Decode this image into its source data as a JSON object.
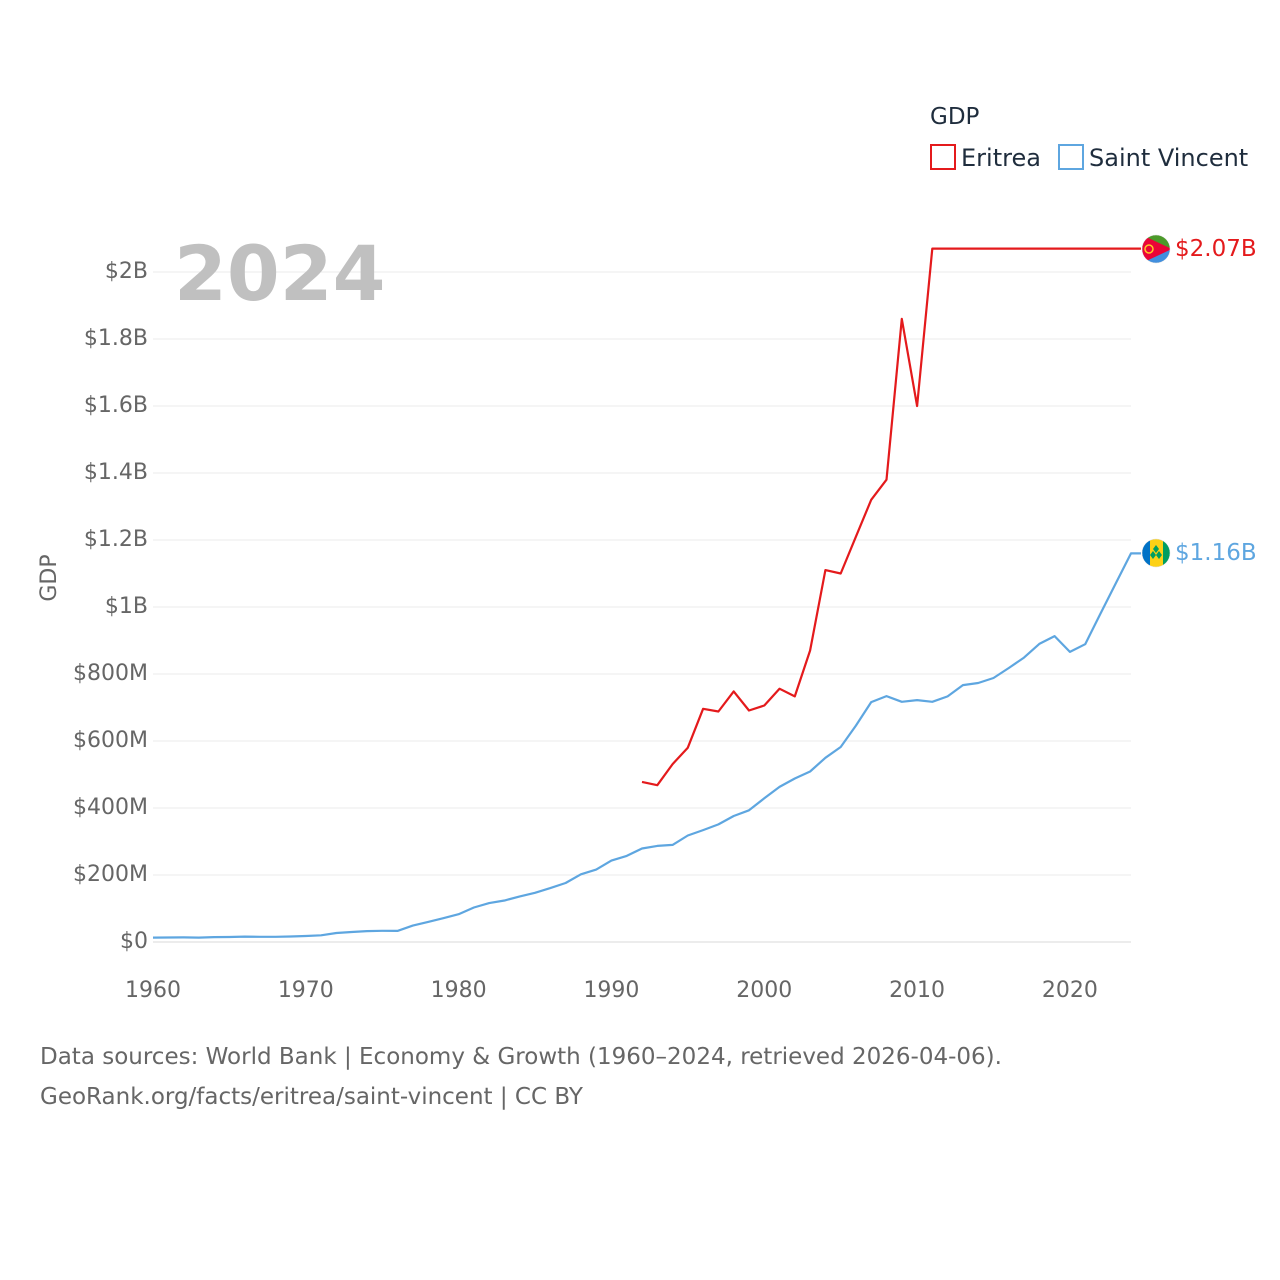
{
  "chart_data": {
    "type": "line",
    "ylabel": "GDP",
    "year_label": "2024",
    "legend": {
      "title": "GDP",
      "placement": "top-right"
    },
    "x_ticks": [
      1960,
      1970,
      1980,
      1990,
      2000,
      2010,
      2020
    ],
    "y_ticks": [
      {
        "value": 0,
        "label": "$0"
      },
      {
        "value": 200000000,
        "label": "$200M"
      },
      {
        "value": 400000000,
        "label": "$400M"
      },
      {
        "value": 600000000,
        "label": "$600M"
      },
      {
        "value": 800000000,
        "label": "$800M"
      },
      {
        "value": 1000000000,
        "label": "$1B"
      },
      {
        "value": 1200000000,
        "label": "$1.2B"
      },
      {
        "value": 1400000000,
        "label": "$1.4B"
      },
      {
        "value": 1600000000,
        "label": "$1.6B"
      },
      {
        "value": 1800000000,
        "label": "$1.8B"
      },
      {
        "value": 2000000000,
        "label": "$2B"
      }
    ],
    "xlim": [
      1960,
      2024
    ],
    "ylim": [
      0,
      2000000000
    ],
    "series": [
      {
        "name": "Eritrea",
        "color": "#e41a1c",
        "end_label": "$2.07B",
        "x": [
          1992,
          1993,
          1994,
          1995,
          1996,
          1997,
          1998,
          1999,
          2000,
          2001,
          2002,
          2003,
          2004,
          2005,
          2006,
          2007,
          2008,
          2009,
          2010,
          2011,
          2012,
          2013,
          2014,
          2015,
          2016,
          2017,
          2018,
          2019,
          2020,
          2021,
          2022,
          2023,
          2024
        ],
        "y": [
          478000000,
          468000000,
          531000000,
          580000000,
          696000000,
          688000000,
          748000000,
          691000000,
          706000000,
          756000000,
          733000000,
          870000000,
          1110000000,
          1100000000,
          1210000000,
          1320000000,
          1380000000,
          1860000000,
          1600000000,
          2070000000,
          2070000000,
          2070000000,
          2070000000,
          2070000000,
          2070000000,
          2070000000,
          2070000000,
          2070000000,
          2070000000,
          2070000000,
          2070000000,
          2070000000,
          2070000000
        ]
      },
      {
        "name": "Saint Vincent",
        "color": "#5ea6e0",
        "end_label": "$1.16B",
        "x": [
          1960,
          1961,
          1962,
          1963,
          1964,
          1965,
          1966,
          1967,
          1968,
          1969,
          1970,
          1971,
          1972,
          1973,
          1974,
          1975,
          1976,
          1977,
          1978,
          1979,
          1980,
          1981,
          1982,
          1983,
          1984,
          1985,
          1986,
          1987,
          1988,
          1989,
          1990,
          1991,
          1992,
          1993,
          1994,
          1995,
          1996,
          1997,
          1998,
          1999,
          2000,
          2001,
          2002,
          2003,
          2004,
          2005,
          2006,
          2007,
          2008,
          2009,
          2010,
          2011,
          2012,
          2013,
          2014,
          2015,
          2016,
          2017,
          2018,
          2019,
          2020,
          2021,
          2022,
          2023,
          2024
        ],
        "y": [
          13000000,
          13500000,
          13800000,
          13200000,
          14500000,
          15000000,
          16000000,
          15500000,
          15500000,
          16500000,
          18000000,
          20000000,
          27000000,
          30000000,
          32500000,
          33500000,
          33000000,
          49000000,
          60000000,
          71000000,
          83000000,
          103000000,
          116000000,
          124000000,
          136000000,
          147000000,
          161000000,
          176000000,
          202000000,
          216000000,
          243000000,
          257000000,
          279000000,
          287000000,
          290000000,
          318000000,
          334000000,
          351000000,
          376000000,
          393000000,
          429000000,
          463000000,
          488000000,
          509000000,
          550000000,
          582000000,
          646000000,
          716000000,
          734000000,
          717000000,
          722000000,
          717000000,
          733000000,
          767000000,
          773000000,
          788000000,
          818000000,
          849000000,
          890000000,
          913000000,
          866000000,
          889000000,
          980000000,
          1070000000,
          1160000000
        ]
      }
    ]
  },
  "footer": {
    "line1": "Data sources: World Bank | Economy & Growth (1960–2024, retrieved 2026-04-06).",
    "line2": "GeoRank.org/facts/eritrea/saint-vincent | CC BY"
  }
}
